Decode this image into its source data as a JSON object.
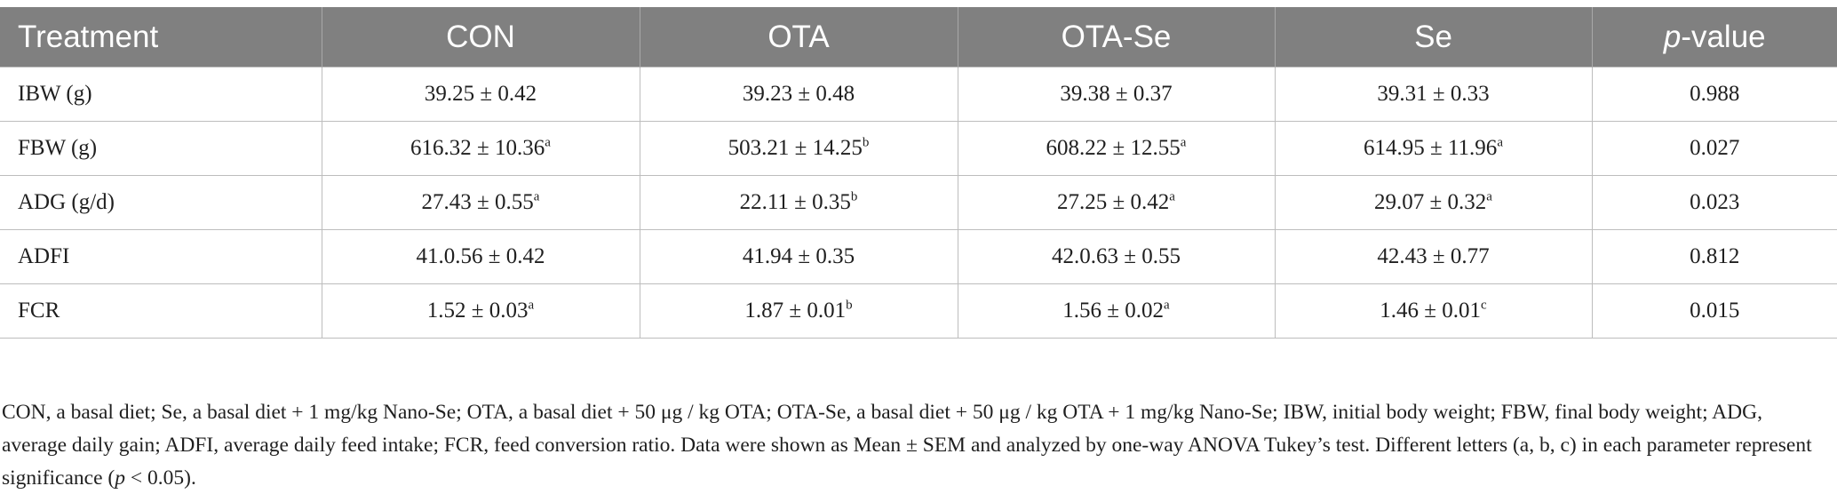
{
  "table": {
    "header": {
      "treatment": "Treatment",
      "groups": [
        "CON",
        "OTA",
        "OTA-Se",
        "Se"
      ],
      "p_prefix": "p",
      "p_suffix": "-value"
    },
    "rows": [
      {
        "label": "IBW (g)",
        "cells": [
          {
            "value": "39.25 ± 0.42",
            "sup": ""
          },
          {
            "value": "39.23 ± 0.48",
            "sup": ""
          },
          {
            "value": "39.38 ± 0.37",
            "sup": ""
          },
          {
            "value": "39.31 ± 0.33",
            "sup": ""
          }
        ],
        "p_value": "0.988"
      },
      {
        "label": "FBW (g)",
        "cells": [
          {
            "value": "616.32 ± 10.36",
            "sup": "a"
          },
          {
            "value": "503.21 ± 14.25",
            "sup": "b"
          },
          {
            "value": "608.22 ± 12.55",
            "sup": "a"
          },
          {
            "value": "614.95 ± 11.96",
            "sup": "a"
          }
        ],
        "p_value": "0.027"
      },
      {
        "label": "ADG (g/d)",
        "cells": [
          {
            "value": "27.43 ± 0.55",
            "sup": "a"
          },
          {
            "value": "22.11 ± 0.35",
            "sup": "b"
          },
          {
            "value": "27.25 ± 0.42",
            "sup": "a"
          },
          {
            "value": "29.07 ± 0.32",
            "sup": "a"
          }
        ],
        "p_value": "0.023"
      },
      {
        "label": "ADFI",
        "cells": [
          {
            "value": "41.0.56 ± 0.42",
            "sup": ""
          },
          {
            "value": "41.94 ± 0.35",
            "sup": ""
          },
          {
            "value": "42.0.63 ± 0.55",
            "sup": ""
          },
          {
            "value": "42.43 ± 0.77",
            "sup": ""
          }
        ],
        "p_value": "0.812"
      },
      {
        "label": "FCR",
        "cells": [
          {
            "value": "1.52 ± 0.03",
            "sup": "a"
          },
          {
            "value": "1.87 ± 0.01",
            "sup": "b"
          },
          {
            "value": "1.56 ± 0.02",
            "sup": "a"
          },
          {
            "value": "1.46 ± 0.01",
            "sup": "c"
          }
        ],
        "p_value": "0.015"
      }
    ]
  },
  "footnote": {
    "text_main": "CON, a basal diet; Se, a basal diet + 1 mg/kg Nano-Se; OTA, a basal diet + 50 μg / kg OTA; OTA-Se, a basal diet + 50 μg / kg OTA + 1 mg/kg Nano-Se; IBW, initial body weight; FBW, final body weight; ADG, average daily gain; ADFI, average daily feed intake; FCR, feed conversion ratio. Data were shown as Mean ± SEM and analyzed by one-way ANOVA Tukey’s test. Different letters (a, b, c) in each parameter represent significance (",
    "p_italic": "p",
    "text_end": " < 0.05)."
  }
}
